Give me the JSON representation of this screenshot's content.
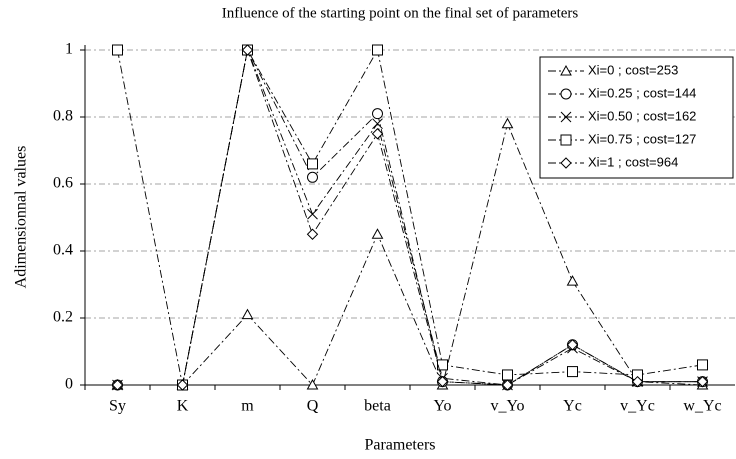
{
  "chart_data": {
    "type": "line",
    "title": "Influence of the starting point on the final set of parameters",
    "xlabel": "Parameters",
    "ylabel": "Adimensionnal values",
    "categories": [
      "Sy",
      "K",
      "m",
      "Q",
      "beta",
      "Yo",
      "v_Yo",
      "Yc",
      "v_Yc",
      "w_Yc"
    ],
    "series": [
      {
        "name": "Xi=0 ; cost=253",
        "color": "#000000",
        "marker": "triangle",
        "values": [
          0,
          0,
          0.21,
          0,
          0.45,
          0,
          0.78,
          0.31,
          0.01,
          0
        ]
      },
      {
        "name": "Xi=0.25 ; cost=144",
        "color": "#000000",
        "marker": "circle",
        "values": [
          0,
          0,
          1,
          0.62,
          0.81,
          0.01,
          0,
          0.12,
          0.01,
          0.01
        ]
      },
      {
        "name": "Xi=0.50 ; cost=162",
        "color": "#000000",
        "marker": "x",
        "values": [
          0,
          0,
          1,
          0.51,
          0.78,
          0.02,
          0,
          0.11,
          0.01,
          0.01
        ]
      },
      {
        "name": "Xi=0.75 ; cost=127",
        "color": "#000000",
        "marker": "square",
        "values": [
          1,
          0,
          1,
          0.66,
          1,
          0.06,
          0.03,
          0.04,
          0.03,
          0.06
        ]
      },
      {
        "name": "Xi=1 ; cost=964",
        "color": "#000000",
        "marker": "diamond",
        "values": [
          0,
          0,
          1,
          0.45,
          0.75,
          0.01,
          0,
          0.12,
          0.01,
          0.01
        ]
      }
    ],
    "ylim": [
      0,
      1
    ],
    "yticks": [
      0,
      0.2,
      0.4,
      0.6,
      0.8,
      1
    ],
    "grid": true,
    "legend": "upper right"
  }
}
